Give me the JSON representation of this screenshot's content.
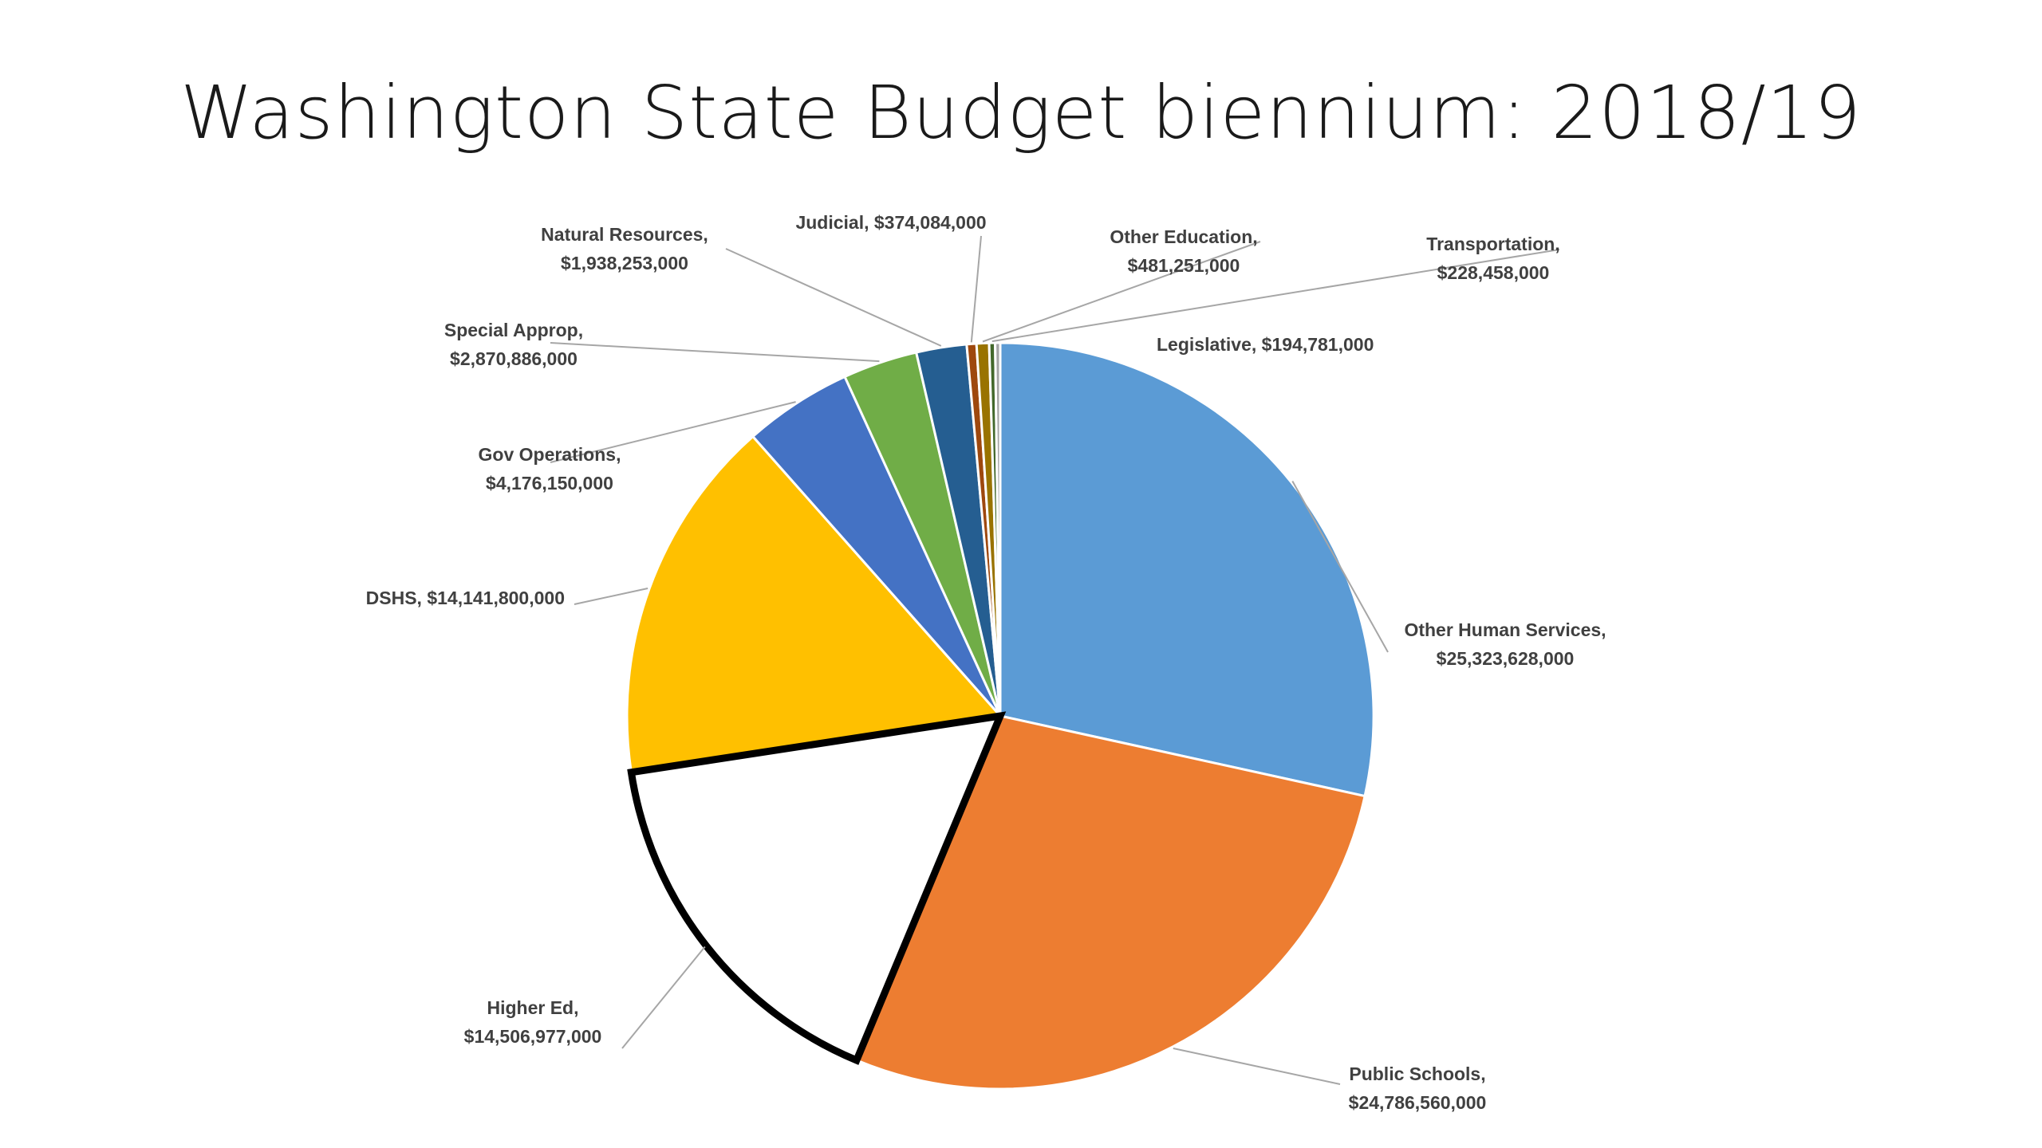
{
  "slide": {
    "title": "Washington State Budget biennium: 2018/19"
  },
  "chart_data": {
    "type": "pie",
    "title": "Washington State Budget biennium: 2018/19",
    "start": "12 o'clock",
    "direction": "clockwise",
    "slices": [
      {
        "name": "Other Human Services",
        "value": 25323628000,
        "label_lines": [
          "Other Human Services,",
          "$25,323,628,000"
        ],
        "color": "#5b9bd5"
      },
      {
        "name": "Public Schools",
        "value": 24786560000,
        "label_lines": [
          "Public Schools,",
          "$24,786,560,000"
        ],
        "color": "#ed7d31"
      },
      {
        "name": "Higher Ed",
        "value": 14506977000,
        "label_lines": [
          "Higher Ed,",
          "$14,506,977,000"
        ],
        "color": "#ffffff",
        "outline": "#000000"
      },
      {
        "name": "DSHS",
        "value": 14141800000,
        "label_lines": [
          "DSHS, $14,141,800,000"
        ],
        "color": "#ffc000"
      },
      {
        "name": "Gov Operations",
        "value": 4176150000,
        "label_lines": [
          "Gov Operations,",
          "$4,176,150,000"
        ],
        "color": "#4472c4"
      },
      {
        "name": "Special Approp",
        "value": 2870886000,
        "label_lines": [
          "Special Approp,",
          "$2,870,886,000"
        ],
        "color": "#70ad47"
      },
      {
        "name": "Natural Resources",
        "value": 1938253000,
        "label_lines": [
          "Natural Resources,",
          "$1,938,253,000"
        ],
        "color": "#255e91"
      },
      {
        "name": "Judicial",
        "value": 374084000,
        "label_lines": [
          "Judicial, $374,084,000"
        ],
        "color": "#9e480e"
      },
      {
        "name": "Other Education",
        "value": 481251000,
        "label_lines": [
          "Other Education,",
          "$481,251,000"
        ],
        "color": "#997300"
      },
      {
        "name": "Transportation",
        "value": 228458000,
        "label_lines": [
          "Transportation,",
          "$228,458,000"
        ],
        "color": "#43682b"
      },
      {
        "name": "Legislative",
        "value": 194781000,
        "label_lines": [
          "Legislative, $194,781,000"
        ],
        "color": "#a5a5a5"
      }
    ]
  }
}
